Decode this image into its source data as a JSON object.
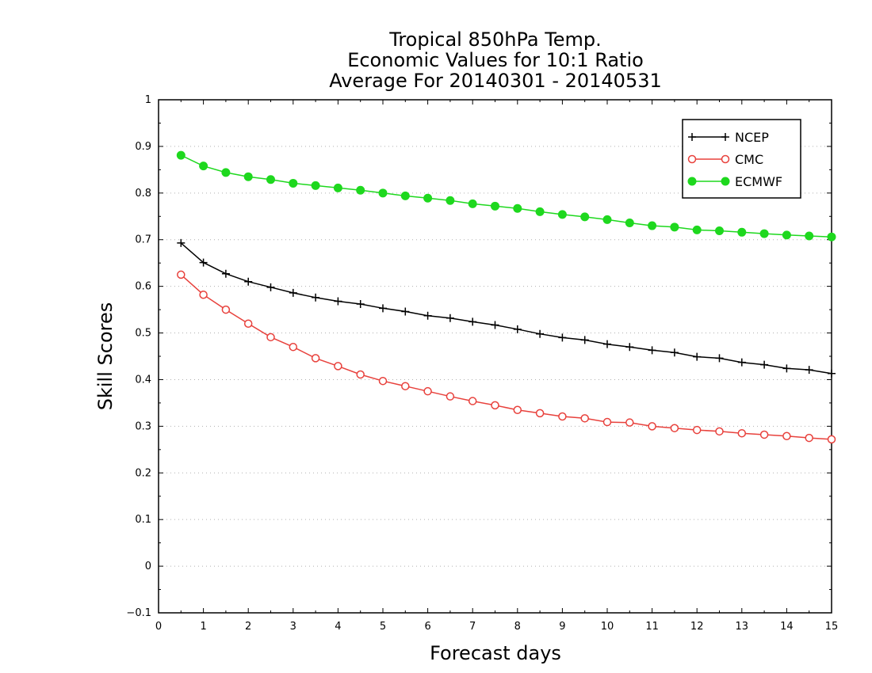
{
  "chart_data": {
    "type": "line",
    "title": [
      "Tropical 850hPa Temp.",
      "Economic Values for 10:1 Ratio",
      "Average For 20140301 - 20140531"
    ],
    "xlabel": "Forecast days",
    "ylabel": "Skill Scores",
    "xlim": [
      0,
      15
    ],
    "ylim": [
      -0.1,
      1
    ],
    "xticks": [
      "0",
      "1",
      "2",
      "3",
      "4",
      "5",
      "6",
      "7",
      "8",
      "9",
      "10",
      "11",
      "12",
      "13",
      "14",
      "15"
    ],
    "yticks": [
      "−0.1",
      "0",
      "0.1",
      "0.2",
      "0.3",
      "0.4",
      "0.5",
      "0.6",
      "0.7",
      "0.8",
      "0.9",
      "1"
    ],
    "grid": true,
    "legend_position": "top-right",
    "x": [
      0.5,
      1,
      1.5,
      2,
      2.5,
      3,
      3.5,
      4,
      4.5,
      5,
      5.5,
      6,
      6.5,
      7,
      7.5,
      8,
      8.5,
      9,
      9.5,
      10,
      10.5,
      11,
      11.5,
      12,
      12.5,
      13,
      13.5,
      14,
      14.5,
      15
    ],
    "series": [
      {
        "name": "NCEP",
        "color": "#000000",
        "marker": "plus",
        "values": [
          0.693,
          0.651,
          0.627,
          0.61,
          0.598,
          0.586,
          0.576,
          0.568,
          0.562,
          0.553,
          0.546,
          0.537,
          0.532,
          0.524,
          0.517,
          0.508,
          0.498,
          0.49,
          0.485,
          0.476,
          0.47,
          0.463,
          0.458,
          0.449,
          0.446,
          0.437,
          0.432,
          0.424,
          0.421,
          0.413
        ]
      },
      {
        "name": "CMC",
        "color": "#e8413c",
        "marker": "open-circle",
        "values": [
          0.625,
          0.582,
          0.55,
          0.52,
          0.491,
          0.47,
          0.446,
          0.429,
          0.411,
          0.397,
          0.386,
          0.375,
          0.364,
          0.354,
          0.345,
          0.335,
          0.328,
          0.321,
          0.317,
          0.309,
          0.308,
          0.3,
          0.296,
          0.292,
          0.289,
          0.285,
          0.282,
          0.279,
          0.275,
          0.272
        ]
      },
      {
        "name": "ECMWF",
        "color": "#1ed81e",
        "marker": "filled-circle",
        "values": [
          0.881,
          0.858,
          0.844,
          0.835,
          0.829,
          0.821,
          0.816,
          0.811,
          0.806,
          0.8,
          0.794,
          0.789,
          0.784,
          0.777,
          0.772,
          0.767,
          0.76,
          0.754,
          0.749,
          0.743,
          0.736,
          0.73,
          0.727,
          0.721,
          0.719,
          0.716,
          0.713,
          0.71,
          0.708,
          0.706
        ]
      }
    ]
  }
}
